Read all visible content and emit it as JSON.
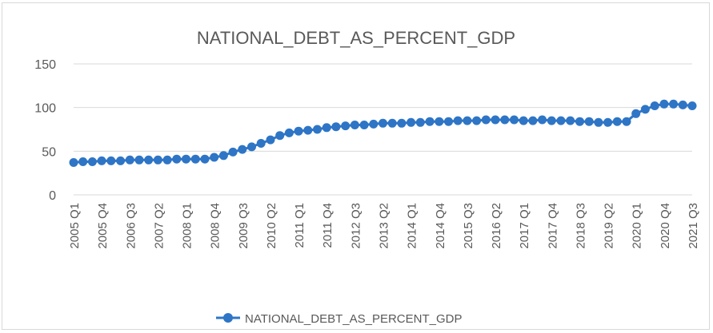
{
  "chart_data": {
    "type": "line",
    "title": "NATIONAL_DEBT_AS_PERCENT_GDP",
    "xlabel": "",
    "ylabel": "",
    "ylim": [
      0,
      150
    ],
    "yticks": [
      0,
      50,
      100,
      150
    ],
    "grid": true,
    "legend_position": "bottom",
    "x": [
      "2005 Q1",
      "2005 Q2",
      "2005 Q3",
      "2005 Q4",
      "2006 Q1",
      "2006 Q2",
      "2006 Q3",
      "2006 Q4",
      "2007 Q1",
      "2007 Q2",
      "2007 Q3",
      "2007 Q4",
      "2008 Q1",
      "2008 Q2",
      "2008 Q3",
      "2008 Q4",
      "2009 Q1",
      "2009 Q2",
      "2009 Q3",
      "2009 Q4",
      "2010 Q1",
      "2010 Q2",
      "2010 Q3",
      "2010 Q4",
      "2011 Q1",
      "2011 Q2",
      "2011 Q3",
      "2011 Q4",
      "2012 Q1",
      "2012 Q2",
      "2012 Q3",
      "2012 Q4",
      "2013 Q1",
      "2013 Q2",
      "2013 Q3",
      "2013 Q4",
      "2014 Q1",
      "2014 Q2",
      "2014 Q3",
      "2014 Q4",
      "2015 Q1",
      "2015 Q2",
      "2015 Q3",
      "2015 Q4",
      "2016 Q1",
      "2016 Q2",
      "2016 Q3",
      "2016 Q4",
      "2017 Q1",
      "2017 Q2",
      "2017 Q3",
      "2017 Q4",
      "2018 Q1",
      "2018 Q2",
      "2018 Q3",
      "2018 Q4",
      "2019 Q1",
      "2019 Q2",
      "2019 Q3",
      "2019 Q4",
      "2020 Q1",
      "2020 Q2",
      "2020 Q3",
      "2020 Q4",
      "2021 Q1",
      "2021 Q2",
      "2021 Q3"
    ],
    "x_tick_labels": [
      "2005 Q1",
      "2005 Q4",
      "2006 Q3",
      "2007 Q2",
      "2008 Q1",
      "2008 Q4",
      "2009 Q3",
      "2010 Q2",
      "2011 Q1",
      "2011 Q4",
      "2012 Q3",
      "2013 Q2",
      "2014 Q1",
      "2014 Q4",
      "2015 Q3",
      "2016 Q2",
      "2017 Q1",
      "2017 Q4",
      "2018 Q3",
      "2019 Q2",
      "2020 Q1",
      "2020 Q4",
      "2021 Q3"
    ],
    "series": [
      {
        "name": "NATIONAL_DEBT_AS_PERCENT_GDP",
        "color": "#2e75c6",
        "values": [
          37,
          38,
          38,
          39,
          39,
          39,
          40,
          40,
          40,
          40,
          40,
          41,
          41,
          41,
          41,
          43,
          45,
          49,
          52,
          55,
          59,
          63,
          68,
          71,
          73,
          74,
          75,
          77,
          78,
          79,
          80,
          80,
          81,
          82,
          82,
          82,
          83,
          83,
          84,
          84,
          84,
          85,
          85,
          85,
          86,
          86,
          86,
          86,
          85,
          85,
          86,
          85,
          85,
          85,
          84,
          84,
          83,
          83,
          84,
          84,
          93,
          98,
          102,
          104,
          104,
          103,
          102
        ]
      }
    ]
  }
}
